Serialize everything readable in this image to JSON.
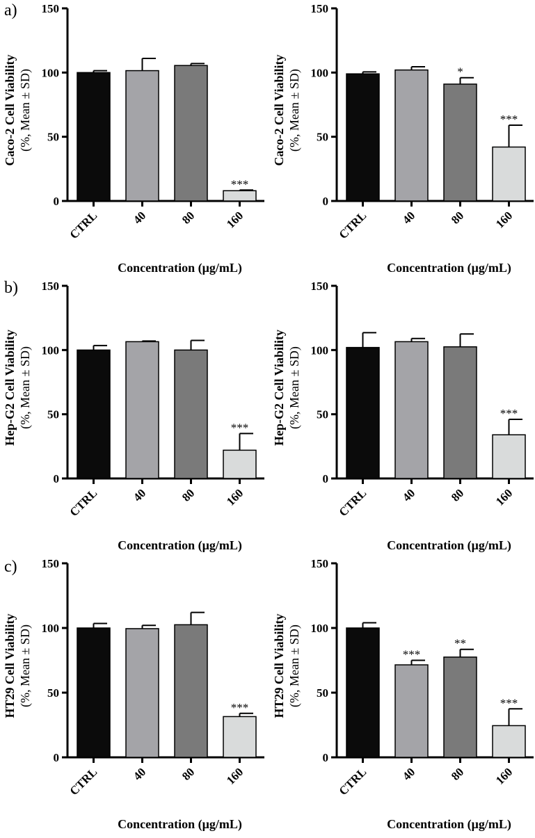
{
  "colors": {
    "bar_fills": [
      "#0b0b0b",
      "#a4a4a8",
      "#7a7a7a",
      "#d9dbdb"
    ],
    "stroke": "#000000"
  },
  "chart_data": [
    {
      "type": "bar",
      "panel_label": "a)",
      "categories": [
        "CTRL",
        "40",
        "80",
        "160"
      ],
      "values": [
        100,
        101.5,
        105.5,
        8
      ],
      "errors": [
        1.5,
        9.5,
        1.5,
        0.5
      ],
      "significance": [
        "",
        "",
        "",
        "***"
      ],
      "ylabel": "Caco-2 Cell Viability",
      "ylabel_sub": "(%, Mean ± SD)",
      "xlabel": "Concentration (μg/mL)",
      "ylim": [
        0,
        150
      ],
      "yticks": [
        0,
        50,
        100,
        150
      ],
      "grid": false,
      "legend": "none"
    },
    {
      "type": "bar",
      "panel_label": "",
      "categories": [
        "CTRL",
        "40",
        "80",
        "160"
      ],
      "values": [
        99,
        102,
        91,
        42
      ],
      "errors": [
        1.5,
        2.5,
        5,
        17
      ],
      "significance": [
        "",
        "",
        "*",
        "***"
      ],
      "ylabel": "Caco-2 Cell Viability",
      "ylabel_sub": "(%, Mean ± SD)",
      "xlabel": "Concentration (μg/mL)",
      "ylim": [
        0,
        150
      ],
      "yticks": [
        0,
        50,
        100,
        150
      ],
      "grid": false,
      "legend": "none"
    },
    {
      "type": "bar",
      "panel_label": "b)",
      "categories": [
        "CTRL",
        "40",
        "80",
        "160"
      ],
      "values": [
        100,
        106.5,
        100,
        22
      ],
      "errors": [
        3.5,
        0.5,
        7.5,
        13
      ],
      "significance": [
        "",
        "",
        "",
        "***"
      ],
      "ylabel": "Hep-G2 Cell Viability",
      "ylabel_sub": "(%, Mean ± SD)",
      "xlabel": "Concentration (μg/mL)",
      "ylim": [
        0,
        150
      ],
      "yticks": [
        0,
        50,
        100,
        150
      ],
      "grid": false,
      "legend": "none"
    },
    {
      "type": "bar",
      "panel_label": "",
      "categories": [
        "CTRL",
        "40",
        "80",
        "160"
      ],
      "values": [
        102,
        106.5,
        102.5,
        34
      ],
      "errors": [
        11.5,
        2.5,
        10,
        12
      ],
      "significance": [
        "",
        "",
        "",
        "***"
      ],
      "ylabel": "Hep-G2 Cell Viability",
      "ylabel_sub": "(%, Mean ± SD)",
      "xlabel": "Concentration (μg/mL)",
      "ylim": [
        0,
        150
      ],
      "yticks": [
        0,
        50,
        100,
        150
      ],
      "grid": false,
      "legend": "none"
    },
    {
      "type": "bar",
      "panel_label": "c)",
      "categories": [
        "CTRL",
        "40",
        "80",
        "160"
      ],
      "values": [
        100,
        99.5,
        102.5,
        31.5
      ],
      "errors": [
        3.5,
        2.5,
        9.5,
        2.5
      ],
      "significance": [
        "",
        "",
        "",
        "***"
      ],
      "ylabel": "HT29 Cell Viability",
      "ylabel_sub": "(%, Mean ± SD)",
      "xlabel": "Concentration (μg/mL)",
      "ylim": [
        0,
        150
      ],
      "yticks": [
        0,
        50,
        100,
        150
      ],
      "grid": false,
      "legend": "none"
    },
    {
      "type": "bar",
      "panel_label": "",
      "categories": [
        "CTRL",
        "40",
        "80",
        "160"
      ],
      "values": [
        100,
        71.5,
        77.5,
        24.5
      ],
      "errors": [
        4,
        3.5,
        6,
        13
      ],
      "significance": [
        "",
        "***",
        "**",
        "***"
      ],
      "ylabel": "HT29 Cell Viability",
      "ylabel_sub": "(%, Mean ± SD)",
      "xlabel": "Concentration (μg/mL)",
      "ylim": [
        0,
        150
      ],
      "yticks": [
        0,
        50,
        100,
        150
      ],
      "grid": false,
      "legend": "none"
    }
  ]
}
